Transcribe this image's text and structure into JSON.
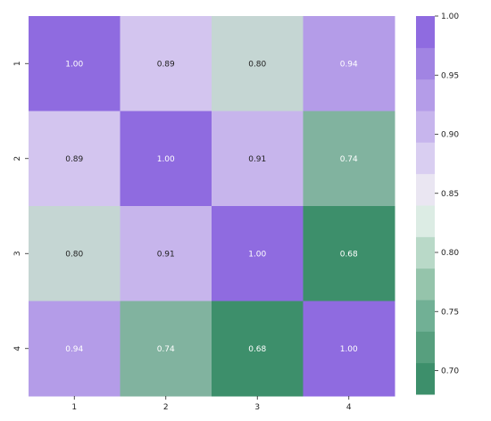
{
  "chart_data": {
    "type": "heatmap",
    "row_labels": [
      "1",
      "2",
      "3",
      "4"
    ],
    "col_labels": [
      "1",
      "2",
      "3",
      "4"
    ],
    "matrix": [
      [
        1.0,
        0.89,
        0.8,
        0.94
      ],
      [
        0.89,
        1.0,
        0.91,
        0.74
      ],
      [
        0.8,
        0.91,
        1.0,
        0.68
      ],
      [
        0.94,
        0.74,
        0.68,
        1.0
      ]
    ],
    "cell_text": [
      [
        "1.00",
        "0.89",
        "0.80",
        "0.94"
      ],
      [
        "0.89",
        "1.00",
        "0.91",
        "0.74"
      ],
      [
        "0.80",
        "0.91",
        "1.00",
        "0.68"
      ],
      [
        "0.94",
        "0.74",
        "0.68",
        "1.00"
      ]
    ],
    "colorbar": {
      "range": [
        0.68,
        1.0
      ],
      "ticks": [
        0.7,
        0.75,
        0.8,
        0.85,
        0.9,
        0.95,
        1.0
      ],
      "tick_labels": [
        "0.70",
        "0.75",
        "0.80",
        "0.85",
        "0.90",
        "0.95",
        "1.00"
      ],
      "colors": [
        "#3d8f6b",
        "#579f7e",
        "#71b095",
        "#95c4ab",
        "#b9d9c8",
        "#dcece4",
        "#eae6f2",
        "#d9cef1",
        "#c7b5ed",
        "#b49ce8",
        "#a184e3",
        "#8f6be0"
      ]
    },
    "color_low": "#3d8f6b",
    "color_mid": "#f2eef6",
    "color_high": "#8f6be0",
    "annotation_dark_text": "#222222",
    "annotation_light_text": "#ffffff"
  }
}
